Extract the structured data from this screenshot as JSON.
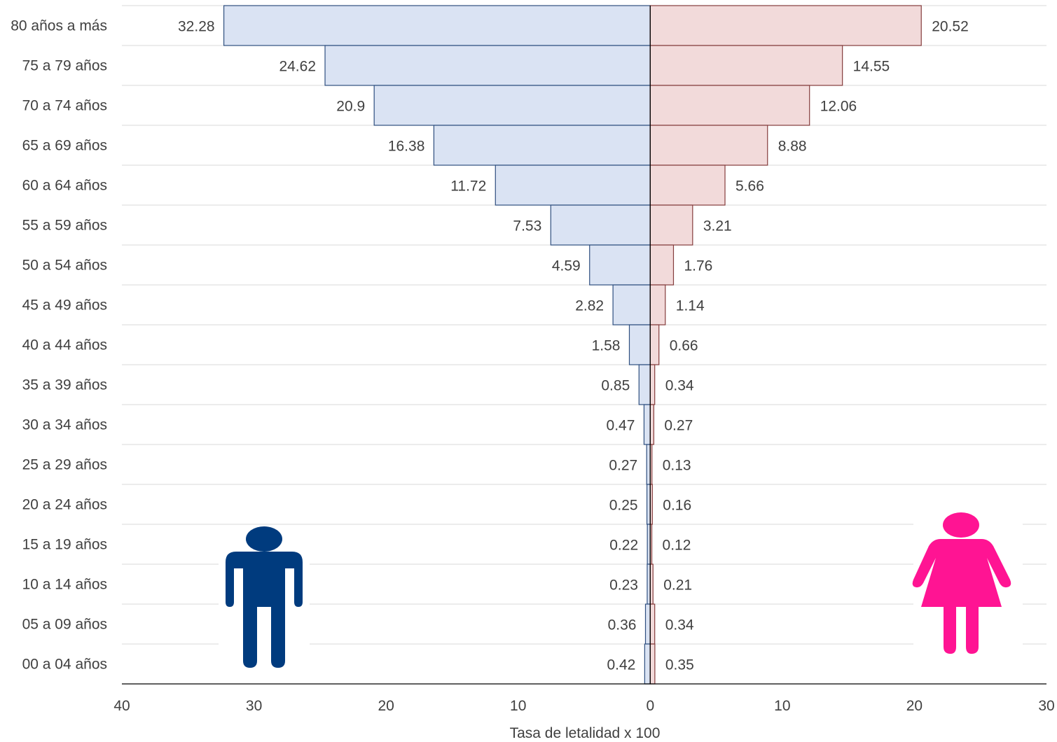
{
  "chart_data": {
    "type": "bar",
    "orientation": "horizontal-pyramid",
    "title": "",
    "xlabel": "Tasa de letalidad x 100",
    "ylabel": "",
    "categories": [
      "80 años a más",
      "75 a 79 años",
      "70 a 74 años",
      "65 a 69 años",
      "60 a 64 años",
      "55 a 59 años",
      "50 a 54 años",
      "45 a 49 años",
      "40 a 44 años",
      "35 a 39 años",
      "30 a 34 años",
      "25 a 29 años",
      "20 a 24 años",
      "15 a 19 años",
      "10 a 14 años",
      "05 a 09 años",
      "00 a 04 años"
    ],
    "series": [
      {
        "side": "left",
        "values": [
          32.28,
          24.62,
          20.9,
          16.38,
          11.72,
          7.53,
          4.59,
          2.82,
          1.58,
          0.85,
          0.47,
          0.27,
          0.25,
          0.22,
          0.23,
          0.36,
          0.42
        ],
        "fill": "#dae3f3",
        "stroke": "#2f4f7f"
      },
      {
        "side": "right",
        "values": [
          20.52,
          14.55,
          12.06,
          8.88,
          5.66,
          3.21,
          1.76,
          1.14,
          0.66,
          0.34,
          0.27,
          0.13,
          0.16,
          0.12,
          0.21,
          0.34,
          0.35
        ],
        "fill": "#f2dada",
        "stroke": "#843c3c"
      }
    ],
    "xlim": [
      -40,
      30
    ],
    "x_ticks": [
      {
        "value": -40,
        "label": "40"
      },
      {
        "value": -30,
        "label": "30"
      },
      {
        "value": -20,
        "label": "20"
      },
      {
        "value": -10,
        "label": "10"
      },
      {
        "value": 0,
        "label": "0"
      },
      {
        "value": 10,
        "label": "10"
      },
      {
        "value": 20,
        "label": "20"
      },
      {
        "value": 30,
        "label": "30"
      }
    ],
    "grid": true,
    "legend": "none",
    "icons": [
      {
        "name": "male-figure-icon",
        "color": "#003b7e"
      },
      {
        "name": "female-figure-icon",
        "color": "#ff1493"
      }
    ]
  }
}
